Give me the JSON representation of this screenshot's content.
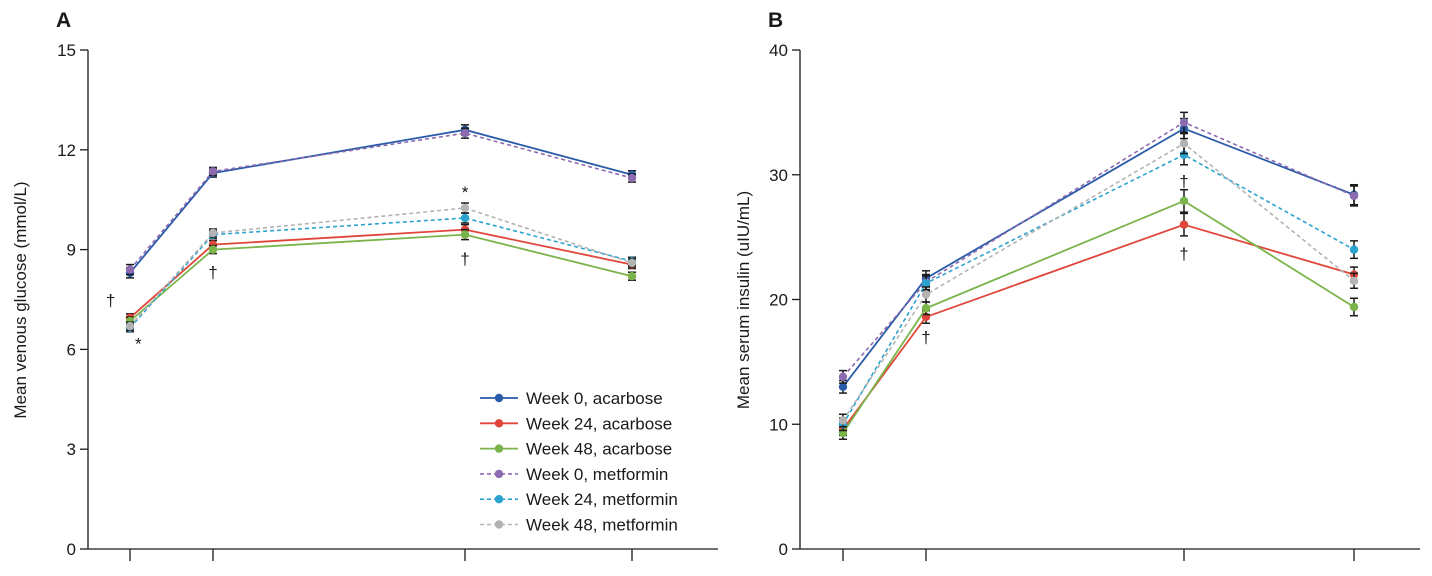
{
  "chart_data": [
    {
      "type": "line",
      "panel": "A",
      "ylabel": "Mean venous glucose (mmol/L)",
      "xlabel": "",
      "x": [
        0,
        30,
        120,
        180
      ],
      "ylim": [
        0,
        15
      ],
      "yticks": [
        0,
        3,
        6,
        9,
        12,
        15
      ],
      "grid": false,
      "legend_position": "bottom-right",
      "series": [
        {
          "name": "Week 0, acarbose",
          "color": "#2a5ba8",
          "dashed": false,
          "values": [
            8.3,
            11.3,
            12.6,
            11.25
          ],
          "errors": [
            0.15,
            0.12,
            0.15,
            0.12
          ]
        },
        {
          "name": "Week 24, acarbose",
          "color": "#e0463b",
          "dashed": false,
          "values": [
            6.95,
            9.15,
            9.6,
            8.55
          ],
          "errors": [
            0.12,
            0.12,
            0.15,
            0.12
          ]
        },
        {
          "name": "Week 48, acarbose",
          "color": "#7ab44a",
          "dashed": false,
          "values": [
            6.85,
            9.0,
            9.45,
            8.2
          ],
          "errors": [
            0.12,
            0.12,
            0.15,
            0.12
          ]
        },
        {
          "name": "Week 0, metformin",
          "color": "#8c6bb1",
          "dashed": true,
          "values": [
            8.4,
            11.35,
            12.5,
            11.15
          ],
          "errors": [
            0.15,
            0.12,
            0.15,
            0.12
          ]
        },
        {
          "name": "Week 24, metformin",
          "color": "#2ba3cf",
          "dashed": true,
          "values": [
            6.65,
            9.45,
            9.95,
            8.65
          ],
          "errors": [
            0.12,
            0.12,
            0.15,
            0.12
          ]
        },
        {
          "name": "Week 48, metformin",
          "color": "#b3b3b3",
          "dashed": true,
          "values": [
            6.7,
            9.5,
            10.25,
            8.6
          ],
          "errors": [
            0.12,
            0.12,
            0.15,
            0.12
          ]
        }
      ],
      "annotations": [
        {
          "text": "†",
          "x": -7,
          "y": 7.3
        },
        {
          "text": "*",
          "x": 3,
          "y": 6.0
        },
        {
          "text": "†",
          "x": 30,
          "y": 8.15
        },
        {
          "text": "*",
          "x": 120,
          "y": 10.55
        },
        {
          "text": "†",
          "x": 120,
          "y": 8.55
        }
      ]
    },
    {
      "type": "line",
      "panel": "B",
      "ylabel": "Mean serum insulin (uIU/mL)",
      "xlabel": "",
      "x": [
        0,
        30,
        120,
        180
      ],
      "ylim": [
        0,
        40
      ],
      "yticks": [
        0,
        10,
        20,
        30,
        40
      ],
      "grid": false,
      "series": [
        {
          "name": "Week 0, acarbose",
          "color": "#2a5ba8",
          "dashed": false,
          "values": [
            13.0,
            21.7,
            33.7,
            28.4
          ],
          "errors": [
            0.5,
            0.6,
            0.8,
            0.8
          ]
        },
        {
          "name": "Week 24, acarbose",
          "color": "#e0463b",
          "dashed": false,
          "values": [
            9.6,
            18.6,
            26.0,
            22.0
          ],
          "errors": [
            0.5,
            0.5,
            0.9,
            0.6
          ]
        },
        {
          "name": "Week 48, acarbose",
          "color": "#7ab44a",
          "dashed": false,
          "values": [
            9.3,
            19.3,
            27.9,
            19.4
          ],
          "errors": [
            0.5,
            0.5,
            0.9,
            0.7
          ]
        },
        {
          "name": "Week 0, metformin",
          "color": "#8c6bb1",
          "dashed": true,
          "values": [
            13.8,
            21.4,
            34.2,
            28.3
          ],
          "errors": [
            0.5,
            0.6,
            0.8,
            0.8
          ]
        },
        {
          "name": "Week 24, metformin",
          "color": "#2ba3cf",
          "dashed": true,
          "values": [
            10.0,
            21.3,
            31.6,
            24.0
          ],
          "errors": [
            0.5,
            0.6,
            0.8,
            0.7
          ]
        },
        {
          "name": "Week 48, metformin",
          "color": "#b3b3b3",
          "dashed": true,
          "values": [
            10.3,
            20.4,
            32.5,
            21.5
          ],
          "errors": [
            0.5,
            0.6,
            0.8,
            0.6
          ]
        }
      ],
      "annotations": [
        {
          "text": "†",
          "x": 30,
          "y": 16.5
        },
        {
          "text": "†",
          "x": 120,
          "y": 29.0
        },
        {
          "text": "†",
          "x": 120,
          "y": 23.2
        }
      ]
    }
  ]
}
